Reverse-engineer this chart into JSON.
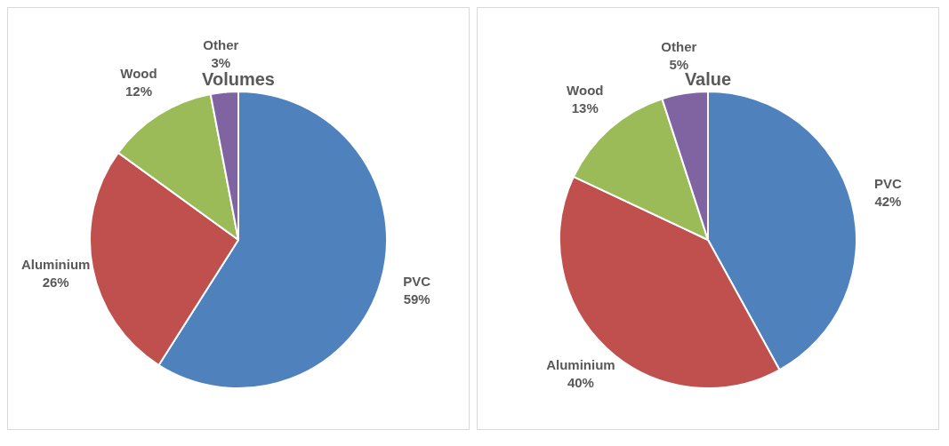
{
  "chart_data": [
    {
      "type": "pie",
      "title": "Volumes",
      "categories": [
        "PVC",
        "Aluminium",
        "Wood",
        "Other"
      ],
      "values": [
        59,
        26,
        12,
        3
      ],
      "value_labels": [
        "59%",
        "26%",
        "12%",
        "3%"
      ],
      "colors": [
        "#4f81bd",
        "#c0504d",
        "#9bbb59",
        "#8064a2"
      ],
      "legend": false
    },
    {
      "type": "pie",
      "title": "Value",
      "categories": [
        "PVC",
        "Aluminium",
        "Wood",
        "Other"
      ],
      "values": [
        42,
        40,
        13,
        5
      ],
      "value_labels": [
        "42%",
        "40%",
        "13%",
        "5%"
      ],
      "colors": [
        "#4f81bd",
        "#c0504d",
        "#9bbb59",
        "#8064a2"
      ],
      "legend": false
    }
  ]
}
